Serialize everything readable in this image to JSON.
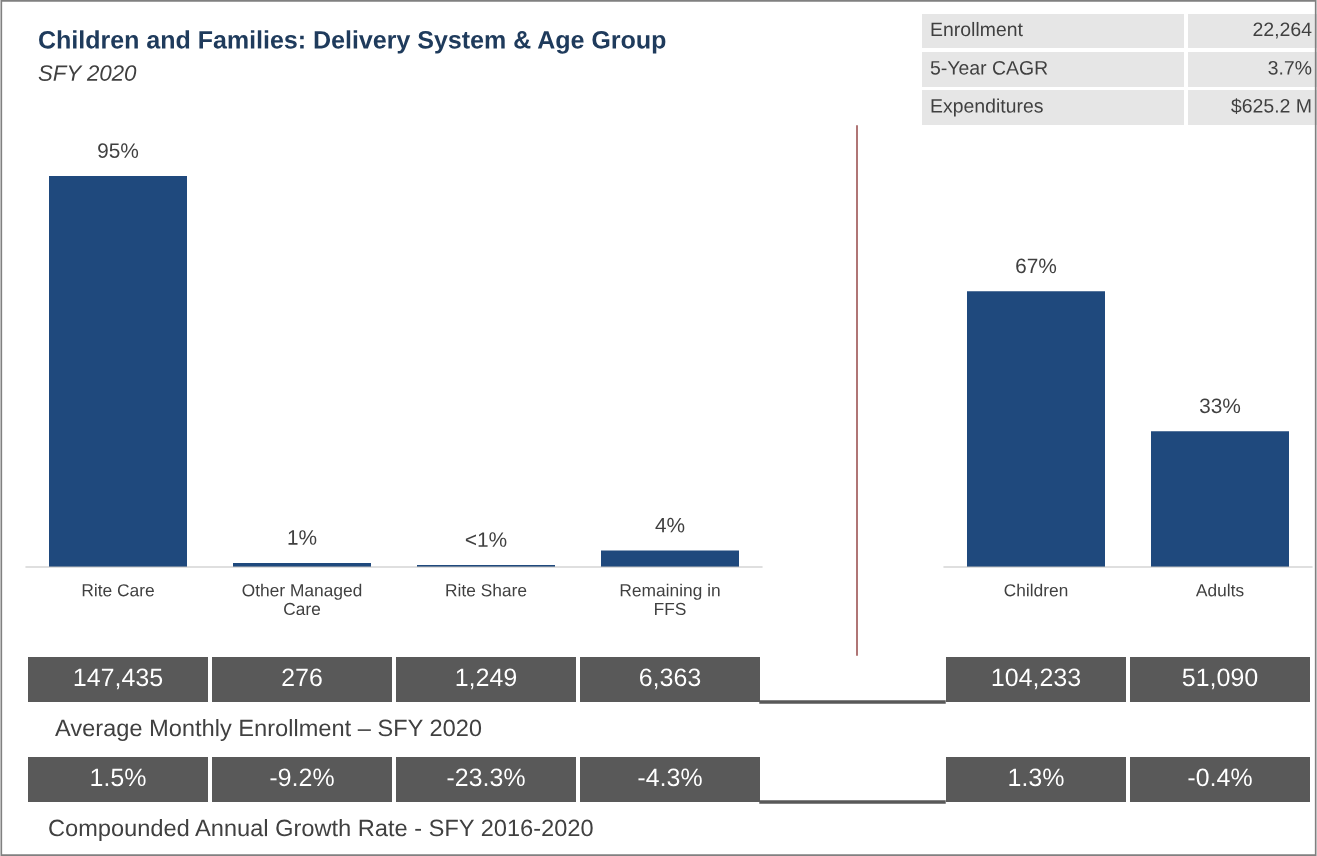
{
  "chart_data": [
    {
      "type": "bar",
      "title": "Children and Families: Delivery System & Age Group",
      "subtitle": "SFY 2020",
      "categories": [
        "Rite Care",
        "Other Managed Care",
        "Rite Share",
        "Remaining in FFS"
      ],
      "values": [
        95,
        1,
        0.5,
        4
      ],
      "value_labels": [
        "95%",
        "1%",
        "<1%",
        "4%"
      ],
      "color": "#1f497d",
      "tick_labels": "x",
      "annotations": [
        "147,435",
        "276",
        "1,249",
        "6,363",
        "1.5%",
        "-9.2%",
        "-23.3%",
        "-4.3%"
      ]
    },
    {
      "type": "bar",
      "categories": [
        "Children",
        "Adults"
      ],
      "values": [
        67,
        33
      ],
      "value_labels": [
        "67%",
        "33%"
      ],
      "color": "#1f497d",
      "tick_labels": "x",
      "annotations": [
        "104,233",
        "51,090",
        "1.3%",
        "-0.4%"
      ]
    },
    {
      "type": "other",
      "annotations": [
        "Enrollment",
        "22,264",
        "5-Year CAGR",
        "3.7%",
        "Expenditures",
        "$625.2 M",
        "Average Monthly Enrollment – SFY 2020",
        "Compounded Annual Growth Rate - SFY 2016-2020"
      ]
    }
  ]
}
